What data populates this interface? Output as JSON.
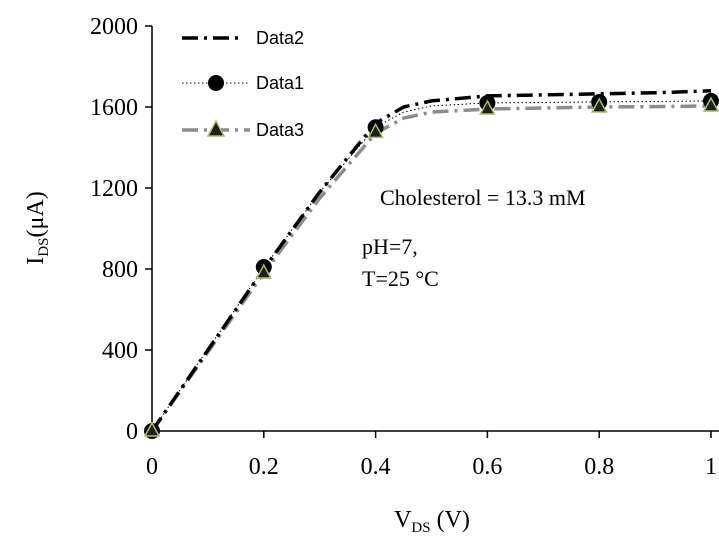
{
  "chart_data": {
    "type": "line",
    "title": "",
    "xlabel": {
      "main": "V",
      "sub": "DS",
      "unit": " (V)"
    },
    "ylabel": {
      "main": "I",
      "sub": "DS",
      "unit": "(μA)"
    },
    "xlim": [
      0,
      1
    ],
    "ylim": [
      0,
      2000
    ],
    "x_ticks": [
      0,
      0.2,
      0.4,
      0.6,
      0.8,
      1
    ],
    "x_tick_labels": [
      "0",
      "0.2",
      "0.4",
      "0.6",
      "0.8",
      "1"
    ],
    "y_ticks": [
      0,
      400,
      800,
      1200,
      1600,
      2000
    ],
    "y_tick_labels": [
      "0",
      "400",
      "800",
      "1200",
      "1600",
      "2000"
    ],
    "grid": false,
    "legend_position": "top-left",
    "series": [
      {
        "name": "Data2",
        "style": "dash-dot",
        "color": "#000000",
        "marker": "none",
        "x": [
          0,
          0.1,
          0.2,
          0.3,
          0.4,
          0.45,
          0.5,
          0.6,
          0.7,
          0.8,
          0.9,
          1.0
        ],
        "y": [
          0,
          400,
          800,
          1180,
          1520,
          1600,
          1630,
          1655,
          1660,
          1665,
          1670,
          1680
        ]
      },
      {
        "name": "Data1",
        "style": "dotted",
        "color": "#000000",
        "marker": "circle",
        "x": [
          0,
          0.2,
          0.4,
          0.6,
          0.8,
          1.0
        ],
        "y": [
          0,
          810,
          1500,
          1620,
          1625,
          1630
        ],
        "curve_x": [
          0,
          0.1,
          0.2,
          0.3,
          0.4,
          0.45,
          0.5,
          0.6,
          0.7,
          0.8,
          0.9,
          1.0
        ],
        "curve_y": [
          0,
          405,
          805,
          1180,
          1500,
          1575,
          1605,
          1620,
          1622,
          1625,
          1627,
          1630
        ]
      },
      {
        "name": "Data3",
        "style": "long-dash-dot",
        "color": "#8c8c8c",
        "marker": "triangle",
        "marker_fill": "#1f1f1f",
        "marker_edge": "#a8c060",
        "x": [
          0,
          0.2,
          0.4,
          0.6,
          0.8,
          1.0
        ],
        "y": [
          0,
          780,
          1475,
          1590,
          1600,
          1605
        ],
        "curve_x": [
          0,
          0.1,
          0.2,
          0.3,
          0.4,
          0.45,
          0.5,
          0.6,
          0.7,
          0.8,
          0.9,
          1.0
        ],
        "curve_y": [
          0,
          390,
          780,
          1150,
          1470,
          1545,
          1575,
          1590,
          1595,
          1600,
          1602,
          1605
        ]
      }
    ],
    "annotations": [
      "Cholesterol = 13.3 mM",
      "pH=7,",
      "T=25 °C"
    ]
  }
}
